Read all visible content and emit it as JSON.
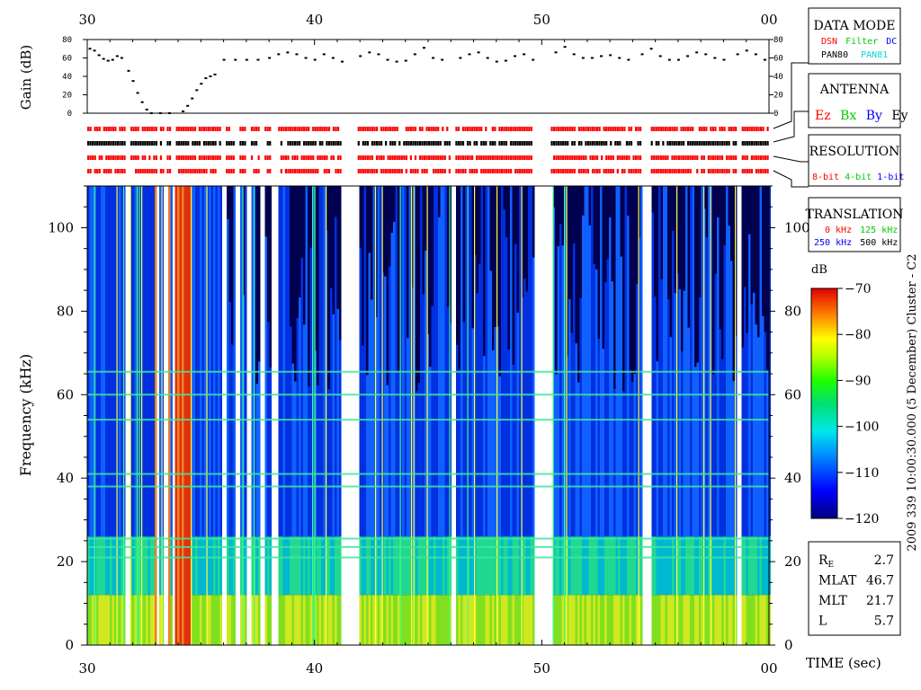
{
  "chart_data": {
    "type": "heatmap",
    "time_axis": {
      "label": "TIME (sec)",
      "tick_labels": [
        "30",
        "40",
        "50",
        "00"
      ],
      "range_sec": [
        30,
        60
      ]
    },
    "gain_panel": {
      "ylabel": "Gain (dB)",
      "ylim": [
        0,
        80
      ],
      "ticks": [
        "80",
        "60",
        "40",
        "20",
        "0"
      ],
      "points": [
        [
          30.1,
          70
        ],
        [
          30.3,
          68
        ],
        [
          30.5,
          63
        ],
        [
          30.7,
          59
        ],
        [
          30.9,
          57
        ],
        [
          31.1,
          58
        ],
        [
          31.3,
          62
        ],
        [
          31.5,
          60
        ],
        [
          31.8,
          46
        ],
        [
          32.0,
          35
        ],
        [
          32.2,
          22
        ],
        [
          32.4,
          12
        ],
        [
          32.6,
          4
        ],
        [
          32.8,
          0
        ],
        [
          33.2,
          0
        ],
        [
          33.6,
          0
        ],
        [
          34.2,
          2
        ],
        [
          34.4,
          8
        ],
        [
          34.6,
          16
        ],
        [
          34.8,
          25
        ],
        [
          35.0,
          32
        ],
        [
          35.2,
          38
        ],
        [
          35.4,
          40
        ],
        [
          35.6,
          42
        ],
        [
          36.0,
          58
        ],
        [
          36.5,
          58
        ],
        [
          37.0,
          58
        ],
        [
          37.5,
          58
        ],
        [
          38.0,
          60
        ],
        [
          38.4,
          64
        ],
        [
          38.8,
          66
        ],
        [
          39.2,
          64
        ],
        [
          39.6,
          60
        ],
        [
          40.0,
          58
        ],
        [
          40.4,
          64
        ],
        [
          40.8,
          60
        ],
        [
          41.2,
          56
        ],
        [
          42.0,
          62
        ],
        [
          42.4,
          66
        ],
        [
          42.8,
          64
        ],
        [
          43.2,
          58
        ],
        [
          43.6,
          56
        ],
        [
          44.0,
          57
        ],
        [
          44.4,
          64
        ],
        [
          44.8,
          71
        ],
        [
          45.2,
          60
        ],
        [
          45.6,
          58
        ],
        [
          46.4,
          60
        ],
        [
          46.8,
          64
        ],
        [
          47.2,
          66
        ],
        [
          47.6,
          60
        ],
        [
          48.0,
          56
        ],
        [
          48.4,
          57
        ],
        [
          48.8,
          62
        ],
        [
          49.2,
          64
        ],
        [
          49.6,
          58
        ],
        [
          50.6,
          66
        ],
        [
          51.0,
          72
        ],
        [
          51.4,
          64
        ],
        [
          51.8,
          60
        ],
        [
          52.2,
          60
        ],
        [
          52.6,
          62
        ],
        [
          53.0,
          63
        ],
        [
          53.4,
          60
        ],
        [
          53.8,
          58
        ],
        [
          54.4,
          64
        ],
        [
          54.8,
          70
        ],
        [
          55.2,
          62
        ],
        [
          55.6,
          58
        ],
        [
          56.0,
          58
        ],
        [
          56.4,
          62
        ],
        [
          56.8,
          66
        ],
        [
          57.2,
          64
        ],
        [
          57.6,
          60
        ],
        [
          58.0,
          58
        ],
        [
          58.6,
          64
        ],
        [
          59.0,
          68
        ],
        [
          59.4,
          64
        ],
        [
          59.8,
          58
        ]
      ]
    },
    "status_rows": [
      {
        "name": "data-mode",
        "color": "#ff0000"
      },
      {
        "name": "antenna",
        "color": "#000000"
      },
      {
        "name": "resolution",
        "color": "#ff0000"
      },
      {
        "name": "translation",
        "color": "#ff0000"
      }
    ],
    "data_gaps_sec": [
      [
        31.65,
        31.82
      ],
      [
        33.05,
        33.15
      ],
      [
        33.35,
        33.5
      ],
      [
        33.7,
        33.82
      ],
      [
        35.9,
        36.1
      ],
      [
        36.45,
        36.65
      ],
      [
        36.95,
        37.2
      ],
      [
        37.6,
        37.8
      ],
      [
        38.1,
        38.35
      ],
      [
        41.15,
        41.9
      ],
      [
        45.95,
        46.2
      ],
      [
        49.6,
        50.4
      ],
      [
        54.35,
        54.8
      ],
      [
        58.55,
        58.75
      ]
    ],
    "strong_bursts_sec": [
      [
        33.85,
        34.55
      ],
      [
        32.9,
        33.02
      ],
      [
        33.55,
        33.65
      ]
    ],
    "spectrogram": {
      "ylabel": "Frequency (kHz)",
      "ylim": [
        0,
        110
      ],
      "ticks": [
        "100",
        "80",
        "60",
        "40",
        "20",
        "0"
      ],
      "tick_values": [
        100,
        80,
        60,
        40,
        20,
        0
      ],
      "interference_lines_khz": [
        65.5,
        60,
        54,
        41,
        38,
        25.5,
        23.5,
        21
      ]
    },
    "colorbar": {
      "unit": "dB",
      "range": [
        -120,
        -70
      ],
      "tick_labels": [
        "−70",
        "−80",
        "−90",
        "−100",
        "−110",
        "−120"
      ],
      "side_label": "2009 339 10:00:30.000 (5 December)    Cluster - C2"
    }
  },
  "legend": {
    "data_mode": {
      "title": "DATA MODE",
      "items": [
        {
          "text": "DSN",
          "color": "#ff0000"
        },
        {
          "text": "Filter",
          "color": "#00cc00"
        },
        {
          "text": "DC",
          "color": "#0000ff"
        },
        {
          "text": "PAN80",
          "color": "#000000"
        },
        {
          "text": "PAN81",
          "color": "#00d8d8"
        }
      ]
    },
    "antenna": {
      "title": "ANTENNA",
      "items": [
        {
          "text": "Ez",
          "color": "#ff0000"
        },
        {
          "text": "Bx",
          "color": "#00cc00"
        },
        {
          "text": "By",
          "color": "#0000ff"
        },
        {
          "text": "Ey",
          "color": "#000000"
        }
      ]
    },
    "resolution": {
      "title": "RESOLUTION",
      "items": [
        {
          "text": "8-bit",
          "color": "#ff0000"
        },
        {
          "text": "4-bit",
          "color": "#00cc00"
        },
        {
          "text": "1-bit",
          "color": "#0000ff"
        }
      ]
    },
    "translation": {
      "title": "TRANSLATION",
      "items": [
        {
          "text": "0 kHz",
          "color": "#ff0000"
        },
        {
          "text": "125 kHz",
          "color": "#00cc00"
        },
        {
          "text": "250 kHz",
          "color": "#0000ff"
        },
        {
          "text": "500 kHz",
          "color": "#000000"
        }
      ]
    }
  },
  "ephemeris": {
    "rows": [
      {
        "label": "R",
        "sub": "E",
        "value": "2.7"
      },
      {
        "label": "MLAT",
        "sub": "",
        "value": "46.7"
      },
      {
        "label": "MLT",
        "sub": "",
        "value": "21.7"
      },
      {
        "label": "L",
        "sub": "",
        "value": "5.7"
      }
    ]
  }
}
